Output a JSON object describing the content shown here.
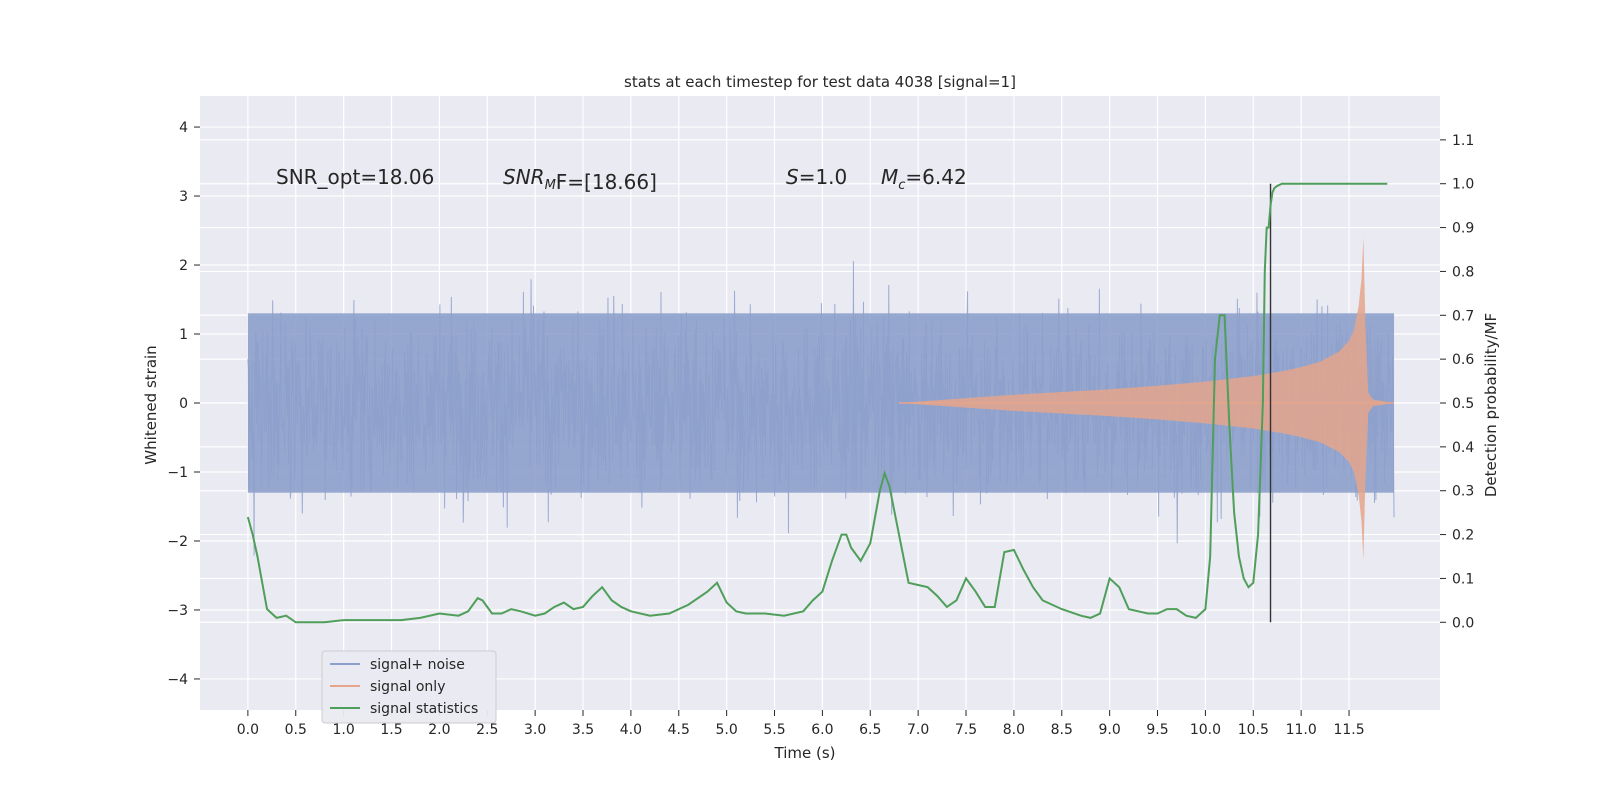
{
  "chart_data": {
    "type": "line",
    "title": "stats at each timestep for test data 4038 [signal=1]",
    "xlabel": "Time (s)",
    "ylabel_left": "Whitened strain",
    "ylabel_right": "Detection probability/MF",
    "xlim": [
      -0.5,
      12.45
    ],
    "ylim_left": [
      -4.45,
      4.45
    ],
    "ylim_right": [
      -0.2,
      1.2
    ],
    "x_ticks": [
      "0.0",
      "0.5",
      "1.0",
      "1.5",
      "2.0",
      "2.5",
      "3.0",
      "3.5",
      "4.0",
      "4.5",
      "5.0",
      "5.5",
      "6.0",
      "6.5",
      "7.0",
      "7.5",
      "8.0",
      "8.5",
      "9.0",
      "9.5",
      "10.0",
      "10.5",
      "11.0",
      "11.5"
    ],
    "y_ticks_left": [
      "4",
      "3",
      "2",
      "1",
      "0",
      "−1",
      "−2",
      "−3",
      "−4"
    ],
    "y_ticks_right": [
      "1.1",
      "1.0",
      "0.9",
      "0.8",
      "0.7",
      "0.6",
      "0.5",
      "0.4",
      "0.3",
      "0.2",
      "0.1",
      "0.0"
    ],
    "grid": true,
    "legend_position": "lower-left",
    "annotations": {
      "snr_opt": "SNR_opt=18.06",
      "snr_mf_label": "SNR",
      "snr_mf_sub": "M",
      "snr_mf_rest": "F=[18.66]",
      "s_label": "S",
      "s_value": "=1.0",
      "mc_label": "M",
      "mc_sub": "c",
      "mc_value": "=6.42"
    },
    "vline_x": 10.68,
    "series": [
      {
        "name": "signal+ noise",
        "color": "#8da0cb",
        "axis": "left",
        "description_values": {
          "x_start": 0.0,
          "x_end": 11.97,
          "amplitude_typical": 1.3
        }
      },
      {
        "name": "signal only",
        "color": "#e5a58b",
        "axis": "left",
        "envelope": {
          "x": [
            6.8,
            7.5,
            8.0,
            8.5,
            9.0,
            9.5,
            10.0,
            10.5,
            10.8,
            11.0,
            11.2,
            11.4,
            11.5,
            11.55,
            11.6,
            11.63,
            11.65,
            11.67,
            11.7,
            11.75,
            11.97
          ],
          "amp": [
            0.0,
            0.07,
            0.12,
            0.16,
            0.2,
            0.25,
            0.31,
            0.39,
            0.46,
            0.52,
            0.6,
            0.75,
            0.9,
            1.05,
            1.4,
            1.8,
            2.4,
            1.2,
            0.15,
            0.05,
            0.0
          ]
        }
      },
      {
        "name": "signal statistics",
        "color": "#4f9e5a",
        "axis": "right",
        "x": [
          0.0,
          0.05,
          0.1,
          0.15,
          0.2,
          0.3,
          0.4,
          0.5,
          0.6,
          0.8,
          1.0,
          1.2,
          1.4,
          1.6,
          1.8,
          2.0,
          2.2,
          2.3,
          2.4,
          2.45,
          2.55,
          2.65,
          2.75,
          2.85,
          3.0,
          3.1,
          3.2,
          3.3,
          3.4,
          3.5,
          3.6,
          3.7,
          3.8,
          3.9,
          4.0,
          4.2,
          4.4,
          4.6,
          4.8,
          4.9,
          5.0,
          5.1,
          5.2,
          5.4,
          5.6,
          5.8,
          5.9,
          6.0,
          6.1,
          6.2,
          6.25,
          6.3,
          6.4,
          6.5,
          6.6,
          6.65,
          6.7,
          6.8,
          6.9,
          7.0,
          7.1,
          7.2,
          7.3,
          7.4,
          7.5,
          7.6,
          7.7,
          7.8,
          7.9,
          8.0,
          8.1,
          8.2,
          8.3,
          8.5,
          8.7,
          8.8,
          8.9,
          9.0,
          9.1,
          9.2,
          9.4,
          9.5,
          9.6,
          9.7,
          9.8,
          9.9,
          10.0,
          10.05,
          10.1,
          10.15,
          10.2,
          10.25,
          10.3,
          10.35,
          10.4,
          10.45,
          10.5,
          10.55,
          10.6,
          10.62,
          10.64,
          10.66,
          10.68,
          10.7,
          10.72,
          10.75,
          10.8,
          10.85,
          10.9,
          11.0,
          11.3,
          11.6,
          11.9
        ],
        "y": [
          0.24,
          0.2,
          0.15,
          0.09,
          0.03,
          0.01,
          0.015,
          0.0,
          0.0,
          0.0,
          0.005,
          0.005,
          0.005,
          0.005,
          0.01,
          0.02,
          0.015,
          0.025,
          0.055,
          0.05,
          0.02,
          0.02,
          0.03,
          0.025,
          0.015,
          0.02,
          0.035,
          0.045,
          0.03,
          0.035,
          0.06,
          0.08,
          0.05,
          0.035,
          0.025,
          0.015,
          0.02,
          0.04,
          0.07,
          0.09,
          0.045,
          0.025,
          0.02,
          0.02,
          0.015,
          0.025,
          0.05,
          0.07,
          0.14,
          0.2,
          0.2,
          0.17,
          0.14,
          0.18,
          0.3,
          0.34,
          0.31,
          0.2,
          0.09,
          0.085,
          0.08,
          0.06,
          0.035,
          0.05,
          0.1,
          0.07,
          0.035,
          0.035,
          0.16,
          0.165,
          0.12,
          0.08,
          0.05,
          0.03,
          0.015,
          0.01,
          0.02,
          0.1,
          0.08,
          0.03,
          0.02,
          0.02,
          0.03,
          0.03,
          0.015,
          0.01,
          0.03,
          0.15,
          0.6,
          0.7,
          0.7,
          0.45,
          0.25,
          0.15,
          0.1,
          0.08,
          0.09,
          0.2,
          0.5,
          0.8,
          0.9,
          0.9,
          0.95,
          0.98,
          0.99,
          0.995,
          1.0,
          1.0,
          1.0,
          1.0,
          1.0,
          1.0,
          1.0
        ]
      }
    ]
  }
}
